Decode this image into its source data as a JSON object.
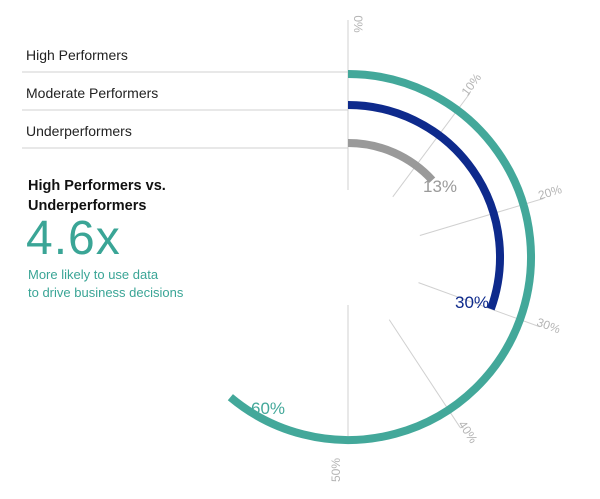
{
  "chart_data": {
    "type": "radial-bar",
    "max": 60,
    "series": [
      {
        "name": "High Performers",
        "value": 60,
        "label": "60%",
        "color": "#43a89a"
      },
      {
        "name": "Moderate Performers",
        "value": 30,
        "label": "30%",
        "color": "#0e2a8c"
      },
      {
        "name": "Underperformers",
        "value": 13,
        "label": "13%",
        "color": "#9a9a9a"
      }
    ],
    "ticks": [
      {
        "value": 0,
        "label": "0%"
      },
      {
        "value": 10,
        "label": "10%"
      },
      {
        "value": 20,
        "label": "20%"
      },
      {
        "value": 30,
        "label": "30%"
      },
      {
        "value": 40,
        "label": "40%"
      },
      {
        "value": 50,
        "label": "50%"
      }
    ]
  },
  "callout": {
    "heading_line1": "High Performers vs.",
    "heading_line2": "Underperformers",
    "multiplier": "4.6x",
    "desc_line1": "More likely to use data",
    "desc_line2": "to drive business decisions"
  },
  "colors": {
    "accent": "#3aa596",
    "grid": "#d0d0d0"
  }
}
